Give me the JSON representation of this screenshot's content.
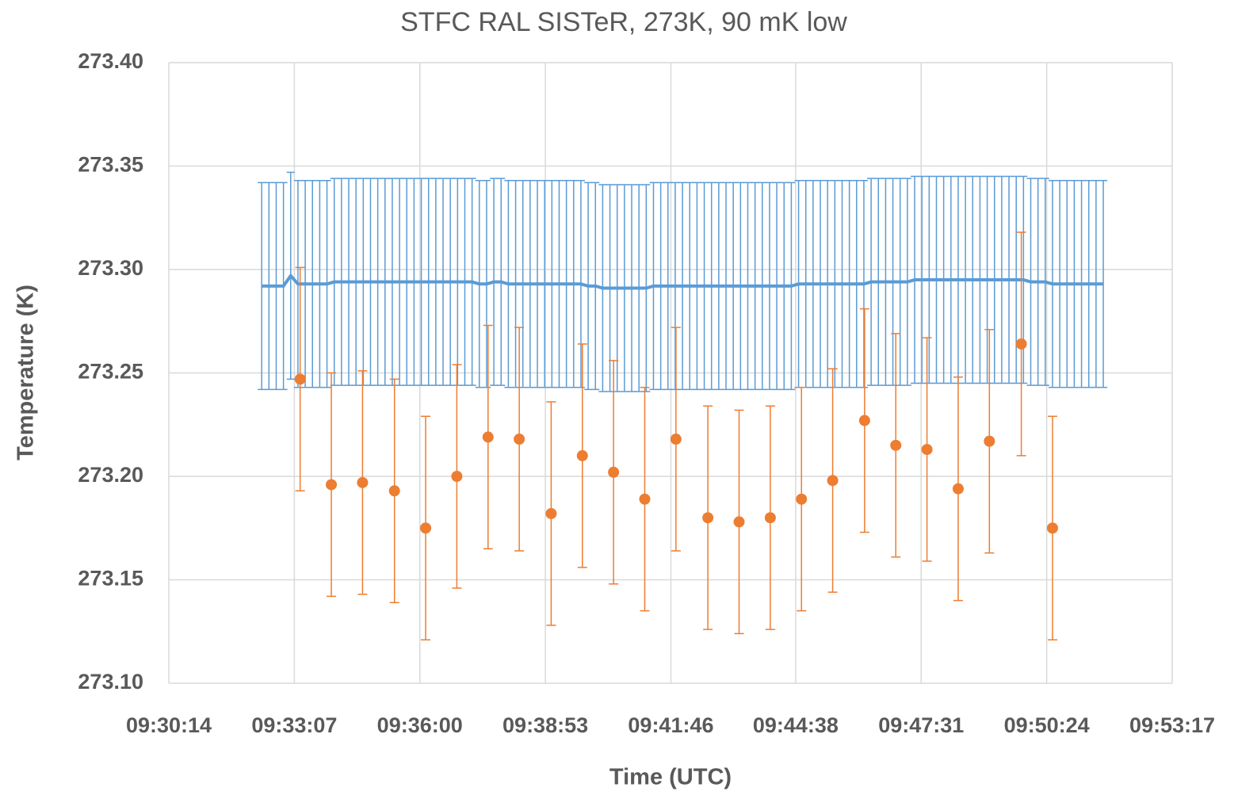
{
  "chart_data": {
    "type": "scatter",
    "title": "STFC RAL SISTeR, 273K, 90 mK low",
    "x_label": "Time (UTC)",
    "y_label": "Temperature (K)",
    "xlim": [
      "09:30:14",
      "09:53:17"
    ],
    "xticks": [
      "09:30:14",
      "09:33:07",
      "09:36:00",
      "09:38:53",
      "09:41:46",
      "09:44:38",
      "09:47:31",
      "09:50:24",
      "09:53:17"
    ],
    "ylim": [
      273.1,
      273.4
    ],
    "yticks": [
      {
        "value": 273.1,
        "label": "273.10"
      },
      273.15,
      {
        "value": 273.2,
        "label": "273.20"
      },
      273.25,
      {
        "value": 273.3,
        "label": "273.30"
      },
      273.35,
      {
        "value": 273.4,
        "label": "273.40"
      }
    ],
    "grid": true,
    "series": [
      {
        "color": "#5b9bd5",
        "line": true,
        "error": 0.05,
        "x": [
          "09:32:22",
          "09:32:32",
          "09:32:42",
          "09:32:52",
          "09:33:02",
          "09:33:12",
          "09:33:22",
          "09:33:32",
          "09:33:42",
          "09:33:52",
          "09:34:02",
          "09:34:12",
          "09:34:22",
          "09:34:32",
          "09:34:42",
          "09:34:52",
          "09:35:02",
          "09:35:12",
          "09:35:22",
          "09:35:32",
          "09:35:42",
          "09:35:52",
          "09:36:02",
          "09:36:12",
          "09:36:22",
          "09:36:32",
          "09:36:42",
          "09:36:52",
          "09:37:02",
          "09:37:12",
          "09:37:22",
          "09:37:32",
          "09:37:42",
          "09:37:52",
          "09:38:02",
          "09:38:12",
          "09:38:22",
          "09:38:32",
          "09:38:42",
          "09:38:52",
          "09:39:02",
          "09:39:12",
          "09:39:22",
          "09:39:32",
          "09:39:42",
          "09:39:52",
          "09:40:02",
          "09:40:12",
          "09:40:22",
          "09:40:32",
          "09:40:42",
          "09:40:52",
          "09:41:02",
          "09:41:12",
          "09:41:22",
          "09:41:32",
          "09:41:42",
          "09:41:52",
          "09:42:02",
          "09:42:12",
          "09:42:22",
          "09:42:32",
          "09:42:42",
          "09:42:52",
          "09:43:02",
          "09:43:12",
          "09:43:22",
          "09:43:32",
          "09:43:42",
          "09:43:52",
          "09:44:02",
          "09:44:12",
          "09:44:22",
          "09:44:32",
          "09:44:42",
          "09:44:52",
          "09:45:02",
          "09:45:12",
          "09:45:22",
          "09:45:32",
          "09:45:42",
          "09:45:52",
          "09:46:02",
          "09:46:12",
          "09:46:22",
          "09:46:32",
          "09:46:42",
          "09:46:52",
          "09:47:02",
          "09:47:12",
          "09:47:22",
          "09:47:32",
          "09:47:42",
          "09:47:52",
          "09:48:02",
          "09:48:12",
          "09:48:22",
          "09:48:32",
          "09:48:42",
          "09:48:52",
          "09:49:02",
          "09:49:12",
          "09:49:22",
          "09:49:32",
          "09:49:42",
          "09:49:52",
          "09:50:02",
          "09:50:12",
          "09:50:22",
          "09:50:32",
          "09:50:42",
          "09:50:52",
          "09:51:02",
          "09:51:12",
          "09:51:22",
          "09:51:32",
          "09:51:42"
        ],
        "values": [
          273.292,
          273.292,
          273.292,
          273.292,
          273.297,
          273.293,
          273.293,
          273.293,
          273.293,
          273.293,
          273.294,
          273.294,
          273.294,
          273.294,
          273.294,
          273.294,
          273.294,
          273.294,
          273.294,
          273.294,
          273.294,
          273.294,
          273.294,
          273.294,
          273.294,
          273.294,
          273.294,
          273.294,
          273.294,
          273.294,
          273.293,
          273.293,
          273.294,
          273.294,
          273.293,
          273.293,
          273.293,
          273.293,
          273.293,
          273.293,
          273.293,
          273.293,
          273.293,
          273.293,
          273.293,
          273.292,
          273.292,
          273.291,
          273.291,
          273.291,
          273.291,
          273.291,
          273.291,
          273.291,
          273.292,
          273.292,
          273.292,
          273.292,
          273.292,
          273.292,
          273.292,
          273.292,
          273.292,
          273.292,
          273.292,
          273.292,
          273.292,
          273.292,
          273.292,
          273.292,
          273.292,
          273.292,
          273.292,
          273.292,
          273.293,
          273.293,
          273.293,
          273.293,
          273.293,
          273.293,
          273.293,
          273.293,
          273.293,
          273.293,
          273.294,
          273.294,
          273.294,
          273.294,
          273.294,
          273.294,
          273.295,
          273.295,
          273.295,
          273.295,
          273.295,
          273.295,
          273.295,
          273.295,
          273.295,
          273.295,
          273.295,
          273.295,
          273.295,
          273.295,
          273.295,
          273.295,
          273.294,
          273.294,
          273.294,
          273.293,
          273.293,
          273.293,
          273.293,
          273.293,
          273.293,
          273.293,
          273.293
        ]
      },
      {
        "color": "#ed7d31",
        "line": false,
        "error": 0.054,
        "x": [
          "09:33:15",
          "09:33:58",
          "09:34:41",
          "09:35:25",
          "09:36:08",
          "09:36:51",
          "09:37:34",
          "09:38:17",
          "09:39:01",
          "09:39:44",
          "09:40:27",
          "09:41:10",
          "09:41:53",
          "09:42:37",
          "09:43:20",
          "09:44:03",
          "09:44:46",
          "09:45:29",
          "09:46:13",
          "09:46:56",
          "09:47:39",
          "09:48:22",
          "09:49:05",
          "09:49:49",
          "09:50:32"
        ],
        "values": [
          273.247,
          273.196,
          273.197,
          273.193,
          273.175,
          273.2,
          273.219,
          273.218,
          273.182,
          273.21,
          273.202,
          273.189,
          273.218,
          273.18,
          273.178,
          273.18,
          273.189,
          273.198,
          273.227,
          273.215,
          273.213,
          273.194,
          273.217,
          273.264,
          273.175
        ]
      }
    ]
  }
}
